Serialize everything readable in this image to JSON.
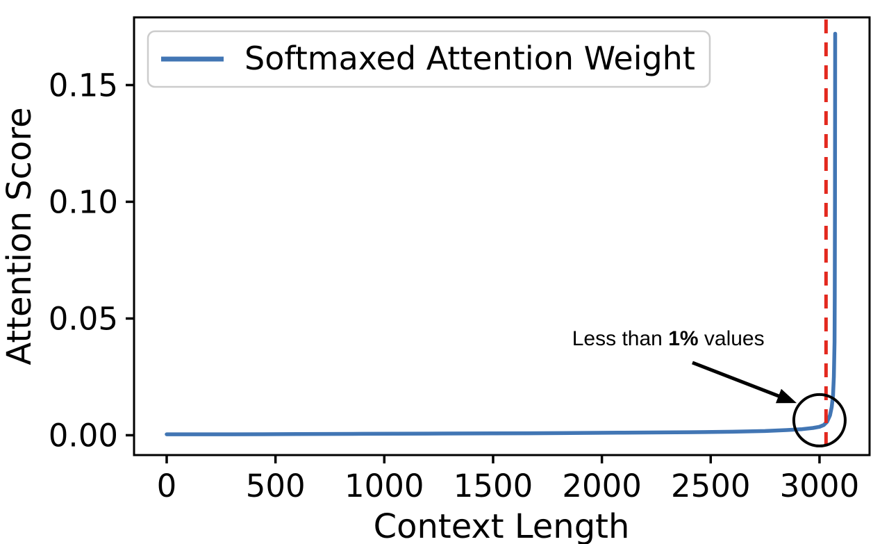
{
  "figure": {
    "background": "#ffffff",
    "text_color": "#000000"
  },
  "chart_data": {
    "type": "line",
    "title": "",
    "xlabel": "Context Length",
    "ylabel": "Attention Score",
    "xlim": [
      -150,
      3230
    ],
    "ylim": [
      -0.0085,
      0.179
    ],
    "grid": false,
    "x_ticks": {
      "values": [
        0,
        500,
        1000,
        1500,
        2000,
        2500,
        3000
      ],
      "labels": [
        "0",
        "500",
        "1000",
        "1500",
        "2000",
        "2500",
        "3000"
      ]
    },
    "y_ticks": {
      "values": [
        0,
        0.05,
        0.1,
        0.15
      ],
      "labels": [
        "0.00",
        "0.05",
        "0.10",
        "0.15"
      ]
    },
    "legend": {
      "position": "upper left",
      "border_color": "#cccccc",
      "entries": [
        {
          "label": "Softmaxed Attention Weight",
          "color": "#4276b4"
        }
      ]
    },
    "series": [
      {
        "name": "Softmaxed Attention Weight",
        "color": "#4276b4",
        "line_width": 5.5,
        "points": [
          [
            0,
            0.0004
          ],
          [
            300,
            0.0004
          ],
          [
            600,
            0.0005
          ],
          [
            900,
            0.0006
          ],
          [
            1200,
            0.0007
          ],
          [
            1500,
            0.0008
          ],
          [
            1800,
            0.0009
          ],
          [
            2100,
            0.0011
          ],
          [
            2400,
            0.0013
          ],
          [
            2600,
            0.0015
          ],
          [
            2750,
            0.0018
          ],
          [
            2850,
            0.0022
          ],
          [
            2920,
            0.0026
          ],
          [
            2970,
            0.0031
          ],
          [
            3000,
            0.0036
          ],
          [
            3020,
            0.0044
          ],
          [
            3035,
            0.0058
          ],
          [
            3048,
            0.0085
          ],
          [
            3056,
            0.012
          ],
          [
            3062,
            0.017
          ],
          [
            3066,
            0.025
          ],
          [
            3069,
            0.04
          ],
          [
            3070,
            0.06
          ],
          [
            3071,
            0.1
          ],
          [
            3072,
            0.172
          ]
        ]
      }
    ],
    "vline": {
      "x": 3030,
      "color": "#e3291f",
      "style": "dashed",
      "width": 5
    },
    "annotation": {
      "text_prefix": "Less than ",
      "text_bold": "1%",
      "text_suffix": " values",
      "text_pos": [
        2305,
        0.0385
      ],
      "arrow_start": [
        2416,
        0.0311
      ],
      "arrow_end": [
        2895,
        0.0138
      ],
      "circle_center": [
        3000,
        0.0064
      ],
      "circle_radius_px": 37,
      "color": "#000000"
    }
  }
}
